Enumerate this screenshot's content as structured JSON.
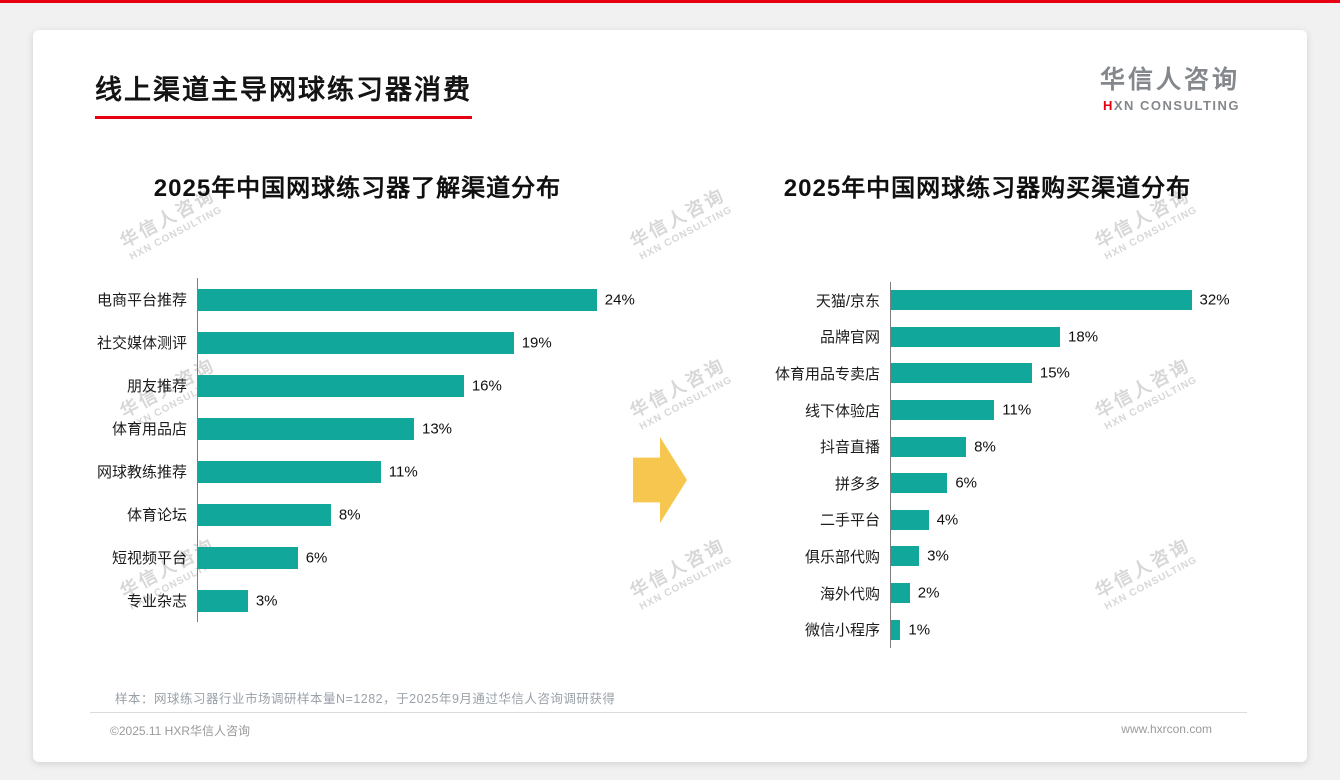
{
  "page": {
    "title": "线上渠道主导网球练习器消费",
    "footnote": "样本：网球练习器行业市场调研样本量N=1282，于2025年9月通过华信人咨询调研获得",
    "footer": {
      "left": "©2025.11 HXR华信人咨询",
      "right": "www.hxrcon.com"
    }
  },
  "logo": {
    "cn": "华信人咨询",
    "en_red": "H",
    "en_rest": "XN CONSULTING"
  },
  "watermark": {
    "line1": "华信人咨询",
    "line2": "HXN CONSULTING"
  },
  "colors": {
    "bar_teal": "#12A79B",
    "accent_red": "#E60012",
    "arrow_gold": "#F7C64F"
  },
  "chart_data": [
    {
      "type": "bar",
      "orientation": "horizontal",
      "title": "2025年中国网球练习器了解渠道分布",
      "categories": [
        "电商平台推荐",
        "社交媒体测评",
        "朋友推荐",
        "体育用品店",
        "网球教练推荐",
        "体育论坛",
        "短视频平台",
        "专业杂志"
      ],
      "values": [
        24,
        19,
        16,
        13,
        11,
        8,
        6,
        3
      ],
      "unit": "%",
      "xlim": [
        0,
        26
      ],
      "grid": false,
      "legend": false
    },
    {
      "type": "bar",
      "orientation": "horizontal",
      "title": "2025年中国网球练习器购买渠道分布",
      "categories": [
        "天猫/京东",
        "品牌官网",
        "体育用品专卖店",
        "线下体验店",
        "抖音直播",
        "拼多多",
        "二手平台",
        "俱乐部代购",
        "海外代购",
        "微信小程序"
      ],
      "values": [
        32,
        18,
        15,
        11,
        8,
        6,
        4,
        3,
        2,
        1
      ],
      "unit": "%",
      "xlim": [
        0,
        34.5
      ],
      "grid": false,
      "legend": false
    }
  ]
}
